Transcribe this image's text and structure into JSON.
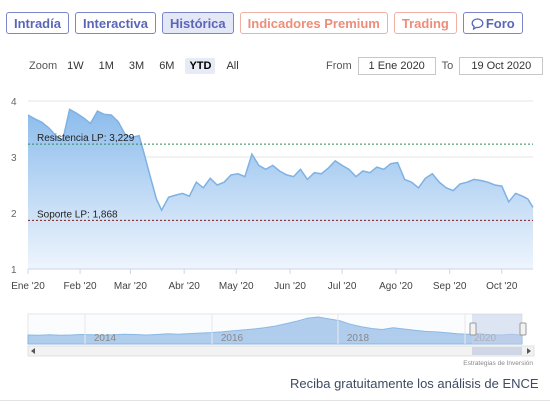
{
  "tabs": [
    {
      "label": "Intradía",
      "name": "tab-intradia",
      "style": "normal"
    },
    {
      "label": "Interactiva",
      "name": "tab-interactiva",
      "style": "normal"
    },
    {
      "label": "Histórica",
      "name": "tab-historica",
      "style": "active"
    },
    {
      "label": "Indicadores Premium",
      "name": "tab-indicadores-premium",
      "style": "premium"
    },
    {
      "label": "Trading",
      "name": "tab-trading",
      "style": "premium"
    },
    {
      "label": "Foro",
      "name": "tab-foro",
      "style": "normal",
      "icon": "chat-bubble-icon"
    }
  ],
  "zoom": {
    "label": "Zoom",
    "buttons": [
      "1W",
      "1M",
      "3M",
      "6M",
      "YTD",
      "All"
    ],
    "selected": "YTD"
  },
  "range": {
    "from_label": "From",
    "from_value": "1 Ene 2020",
    "to_label": "To",
    "to_value": "19 Oct 2020"
  },
  "colors": {
    "line": "#7fb1e3",
    "fill_top": "#8cbcec",
    "fill_bottom": "#eef5fd",
    "resistance": "#2e8b57",
    "support": "#8b1a1a",
    "tab_border": "#7a86c8",
    "tab_text": "#5a67b8",
    "premium_text": "#ee8d79",
    "navigator_fill": "#a9c9ec",
    "navigator_mask": "#c5d0e8"
  },
  "chart_data": {
    "type": "area",
    "x_start": "2020-01-02",
    "x_end": "2020-10-19",
    "ylim": [
      1,
      4
    ],
    "yticks": [
      1,
      2,
      3,
      4
    ],
    "xtick_labels": [
      "Ene '20",
      "Feb '20",
      "Mar '20",
      "Abr '20",
      "May '20",
      "Jun '20",
      "Jul '20",
      "Ago '20",
      "Sep '20",
      "Oct '20"
    ],
    "grid": true,
    "legend": "none",
    "series": [
      {
        "x": [
          "2020-01-02",
          "2020-01-06",
          "2020-01-10",
          "2020-01-14",
          "2020-01-18",
          "2020-01-22",
          "2020-01-26",
          "2020-01-30",
          "2020-02-03",
          "2020-02-07",
          "2020-02-11",
          "2020-02-15",
          "2020-02-19",
          "2020-02-23",
          "2020-02-27",
          "2020-03-02",
          "2020-03-06",
          "2020-03-09",
          "2020-03-12",
          "2020-03-16",
          "2020-03-19",
          "2020-03-23",
          "2020-03-27",
          "2020-03-31",
          "2020-04-04",
          "2020-04-08",
          "2020-04-12",
          "2020-04-16",
          "2020-04-20",
          "2020-04-24",
          "2020-04-28",
          "2020-05-02",
          "2020-05-06",
          "2020-05-10",
          "2020-05-14",
          "2020-05-18",
          "2020-05-22",
          "2020-05-26",
          "2020-05-30",
          "2020-06-03",
          "2020-06-07",
          "2020-06-11",
          "2020-06-15",
          "2020-06-19",
          "2020-06-23",
          "2020-06-27",
          "2020-07-01",
          "2020-07-05",
          "2020-07-09",
          "2020-07-13",
          "2020-07-17",
          "2020-07-21",
          "2020-07-25",
          "2020-07-29",
          "2020-08-02",
          "2020-08-06",
          "2020-08-10",
          "2020-08-14",
          "2020-08-18",
          "2020-08-22",
          "2020-08-26",
          "2020-08-30",
          "2020-09-03",
          "2020-09-07",
          "2020-09-11",
          "2020-09-15",
          "2020-09-19",
          "2020-09-23",
          "2020-09-27",
          "2020-10-01",
          "2020-10-05",
          "2020-10-09",
          "2020-10-13",
          "2020-10-16",
          "2020-10-19"
        ],
        "y": [
          3.75,
          3.68,
          3.62,
          3.52,
          3.38,
          3.3,
          3.85,
          3.78,
          3.7,
          3.6,
          3.82,
          3.76,
          3.75,
          3.63,
          3.4,
          3.35,
          3.38,
          3.05,
          2.7,
          2.25,
          2.05,
          2.28,
          2.32,
          2.35,
          2.3,
          2.55,
          2.45,
          2.62,
          2.5,
          2.55,
          2.68,
          2.7,
          2.65,
          3.05,
          2.85,
          2.78,
          2.85,
          2.75,
          2.68,
          2.65,
          2.78,
          2.6,
          2.72,
          2.7,
          2.8,
          2.93,
          2.85,
          2.78,
          2.65,
          2.75,
          2.72,
          2.82,
          2.78,
          2.88,
          2.9,
          2.6,
          2.55,
          2.45,
          2.62,
          2.7,
          2.55,
          2.45,
          2.4,
          2.52,
          2.55,
          2.6,
          2.58,
          2.55,
          2.5,
          2.48,
          2.2,
          2.35,
          2.3,
          2.25,
          2.1
        ]
      }
    ],
    "annotations": [
      {
        "label": "Resistencia LP: 3,229",
        "y": 3.229,
        "kind": "resistance"
      },
      {
        "label": "Soporte LP: 1,868",
        "y": 1.868,
        "kind": "support"
      }
    ],
    "navigator": {
      "year_labels": [
        "2014",
        "2016",
        "2018",
        "2020"
      ],
      "credit": "Estrategias de Inversión",
      "profile": [
        0.25,
        0.24,
        0.26,
        0.24,
        0.25,
        0.27,
        0.26,
        0.24,
        0.26,
        0.28,
        0.27,
        0.25,
        0.27,
        0.3,
        0.28,
        0.31,
        0.33,
        0.35,
        0.38,
        0.42,
        0.46,
        0.5,
        0.55,
        0.62,
        0.72,
        0.82,
        0.95,
        1.0,
        0.92,
        0.85,
        0.7,
        0.6,
        0.52,
        0.48,
        0.55,
        0.5,
        0.45,
        0.4,
        0.38,
        0.34,
        0.3,
        0.28,
        0.3,
        0.26,
        0.25,
        0.28,
        0.24
      ]
    }
  },
  "footer": {
    "text": "Reciba gratuitamente los análisis de ENCE"
  }
}
